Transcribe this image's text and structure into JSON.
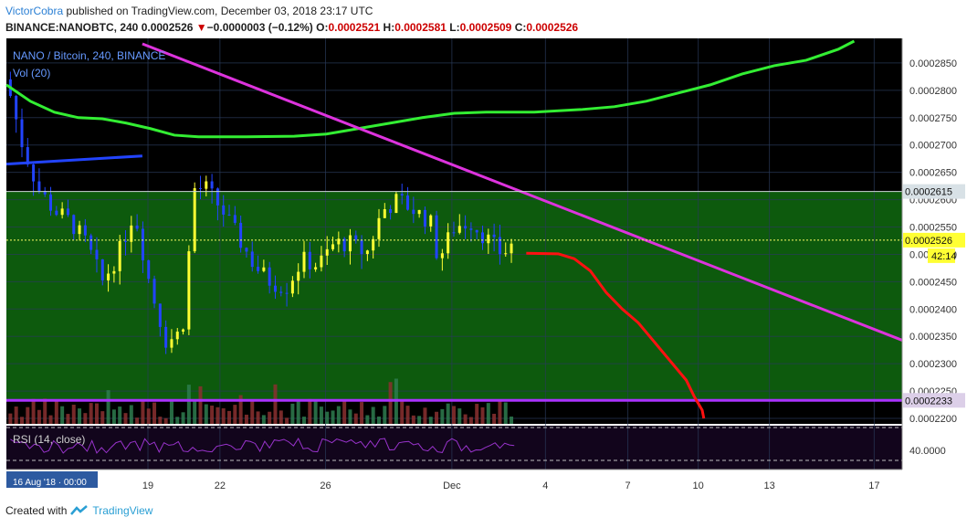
{
  "header": {
    "author": "VictorCobra",
    "published": "published on TradingView.com, December 03, 2018 23:17 UTC",
    "symbol": "BINANCE:NANOBTC, 240",
    "last": "0.0002526",
    "change_arrow": "▼",
    "change": "−0.0000003 (−0.12%)",
    "o_label": "O:",
    "o_val": "0.0002521",
    "h_label": "H:",
    "h_val": "0.0002581",
    "l_label": "L:",
    "l_val": "0.0002509",
    "c_label": "C:",
    "c_val": "0.0002526"
  },
  "footer": {
    "created_with": "Created with",
    "brand": "TradingView"
  },
  "colors": {
    "background": "#000000",
    "green_zone": "#0d5a0d",
    "bull": "#ffff33",
    "bear": "#2244ff",
    "ma": "#33ee33",
    "downtrend": "#dd33dd",
    "projection": "#ff1111",
    "support": "#aa33ff",
    "rsi": "#9933cc",
    "vol_up": "#2e7d4f",
    "vol_down": "#8b3030"
  },
  "chart_data": {
    "type": "candlestick",
    "title": "NANO / Bitcoin, 240, BINANCE",
    "indicator_labels": {
      "volume": "Vol (20)",
      "rsi": "RSI (14, close)",
      "rsi_level": "40.0000"
    },
    "y_ticks": [
      "0.0002850",
      "0.0002800",
      "0.0002750",
      "0.0002700",
      "0.0002650",
      "0.0002600",
      "0.0002550",
      "0.0002500",
      "0.0002450",
      "0.0002400",
      "0.0002350",
      "0.0002300",
      "0.0002250",
      "0.0002200"
    ],
    "ylim": [
      0.000219,
      0.0002895
    ],
    "x_ticks": [
      "19",
      "22",
      "26",
      "Dec",
      "4",
      "7",
      "10",
      "13",
      "17"
    ],
    "crosshair_date": "16 Aug '18 · 00:00",
    "price_labels": {
      "resistance": "0.0002615",
      "last": "0.0002526",
      "countdown": "42:14",
      "support": "0.0002233"
    },
    "horizontal_levels": {
      "resistance": 0.0002615,
      "support": 0.0002233,
      "last": 0.0002526
    },
    "ma_line": [
      [
        0,
        0.000281
      ],
      [
        3,
        0.000278
      ],
      [
        6,
        0.000276
      ],
      [
        9,
        0.000275
      ],
      [
        12,
        0.0002748
      ],
      [
        15,
        0.000274
      ],
      [
        18,
        0.000273
      ],
      [
        21,
        0.0002718
      ],
      [
        24,
        0.0002715
      ],
      [
        30,
        0.0002715
      ],
      [
        36,
        0.0002716
      ],
      [
        40,
        0.000272
      ],
      [
        44,
        0.000273
      ],
      [
        48,
        0.000274
      ],
      [
        52,
        0.000275
      ],
      [
        56,
        0.0002758
      ],
      [
        60,
        0.000276
      ],
      [
        66,
        0.000276
      ],
      [
        72,
        0.0002765
      ],
      [
        76,
        0.000277
      ],
      [
        80,
        0.000278
      ],
      [
        84,
        0.0002795
      ],
      [
        88,
        0.000281
      ],
      [
        92,
        0.000283
      ],
      [
        96,
        0.0002845
      ],
      [
        100,
        0.0002855
      ],
      [
        104,
        0.0002875
      ],
      [
        106,
        0.000289
      ]
    ],
    "downtrend_line": {
      "from": [
        17,
        0.0002885
      ],
      "to": [
        112,
        0.0002343
      ]
    },
    "blue_resistance": {
      "from": [
        0,
        0.0002665
      ],
      "to": [
        17,
        0.000268
      ]
    },
    "projection_path": [
      [
        65,
        0.0002502
      ],
      [
        69,
        0.0002501
      ],
      [
        71,
        0.0002492
      ],
      [
        73,
        0.000247
      ],
      [
        75,
        0.000243
      ],
      [
        77,
        0.00024
      ],
      [
        79,
        0.0002375
      ],
      [
        81,
        0.000234
      ],
      [
        83,
        0.0002305
      ],
      [
        85,
        0.000227
      ],
      [
        86,
        0.000224
      ],
      [
        87,
        0.0002215
      ],
      [
        87.2,
        0.00022
      ]
    ]
  }
}
